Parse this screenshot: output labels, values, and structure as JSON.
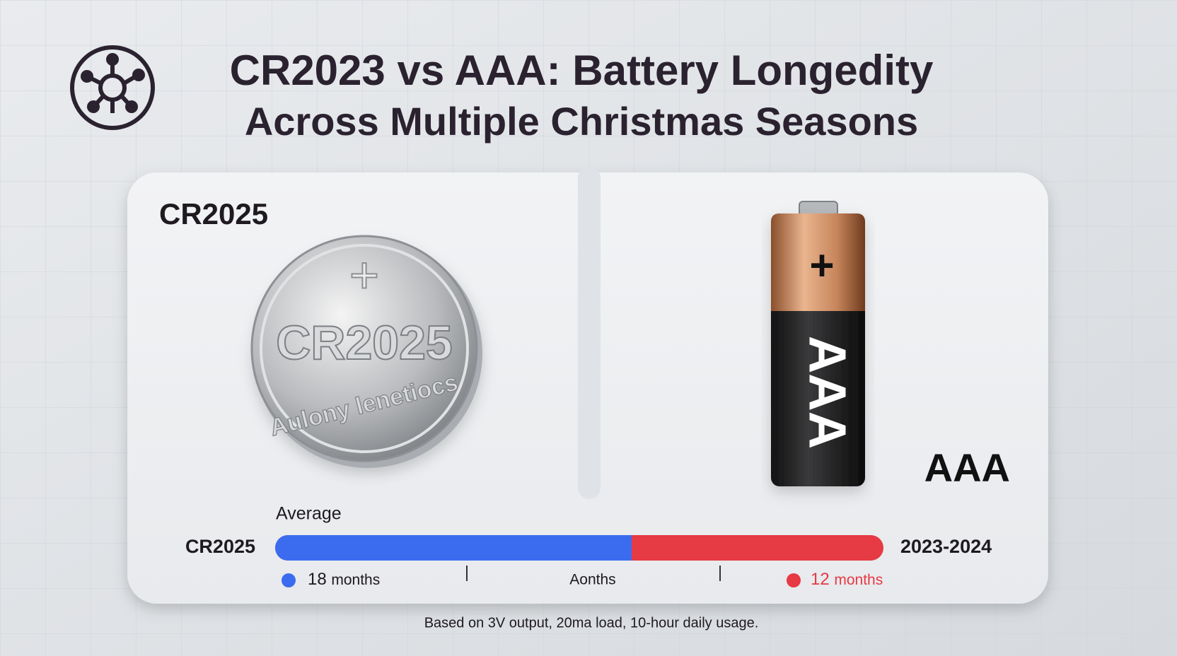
{
  "header": {
    "title_line1": "CR2023 vs AAA: Battery Longedity",
    "title_line2": "Across Multiple Christmas Seasons"
  },
  "panels": [
    {
      "label": "CR2025",
      "symbol": "+",
      "battery_text": "CR2025",
      "battery_subtext": "Aulony lenetiocs"
    },
    {
      "label": "AAA",
      "symbol": "+",
      "battery_text": "AAA"
    }
  ],
  "bar": {
    "caption": "Average",
    "left_label": "CR2025",
    "right_label": "2023-2024",
    "markers": [
      {
        "number": "18",
        "unit": "months"
      },
      {
        "text": "Aonths"
      },
      {
        "number": "12",
        "unit": "months"
      }
    ]
  },
  "footnote": "Based on 3V output, 20ma load, 10-hour daily usage."
}
